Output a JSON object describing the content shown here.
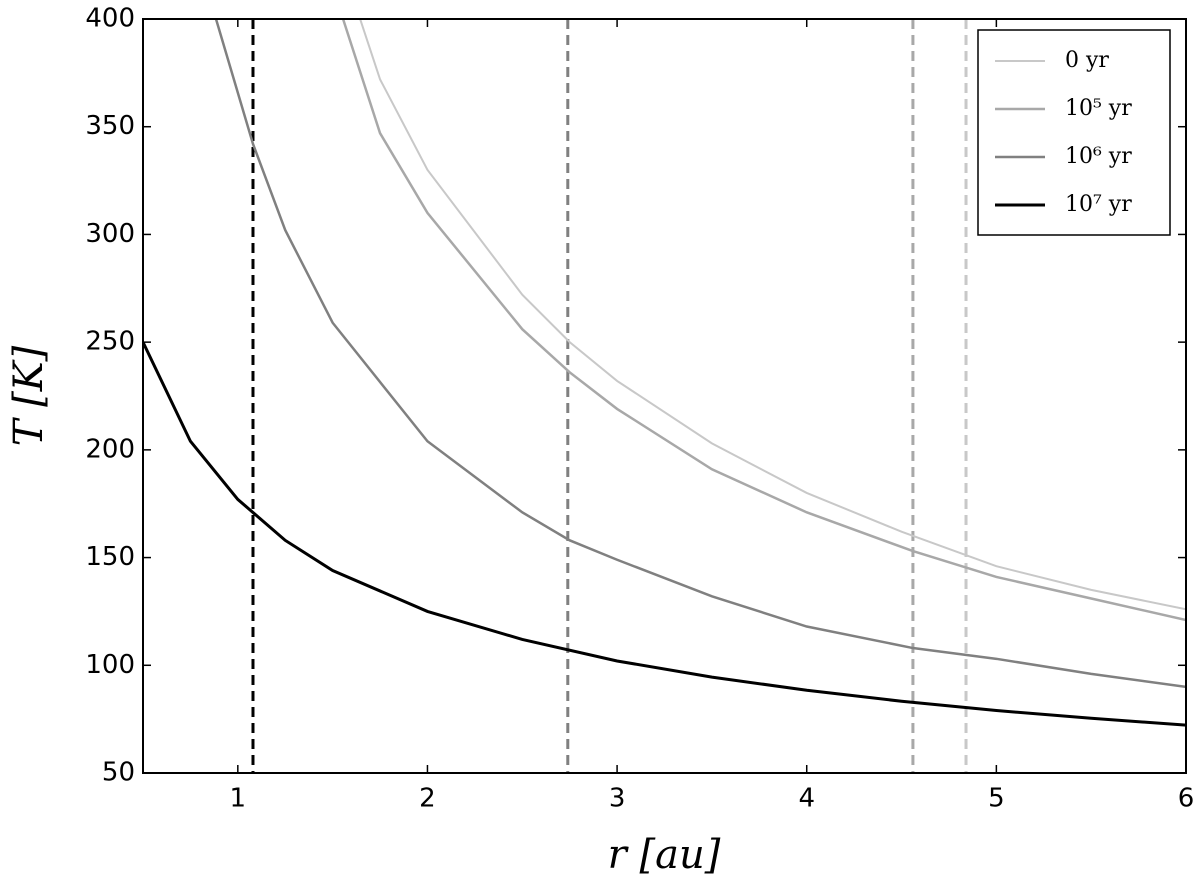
{
  "chart_data": {
    "type": "line",
    "xlabel": "r [au]",
    "ylabel": "T [K]",
    "xlim": [
      0.5,
      6
    ],
    "ylim": [
      50,
      400
    ],
    "xticks": [
      1,
      2,
      3,
      4,
      5,
      6
    ],
    "yticks": [
      50,
      100,
      150,
      200,
      250,
      300,
      350,
      400
    ],
    "legend_loc": "upper right",
    "series": [
      {
        "name": "0 yr",
        "color": "#c8c8c8",
        "width": 2,
        "x": [
          1.645,
          1.75,
          2,
          2.5,
          2.75,
          3,
          3.5,
          4,
          4.5,
          5,
          5.5,
          6
        ],
        "values": [
          400,
          372,
          330,
          272,
          250,
          232,
          203,
          180,
          162,
          146,
          135,
          126
        ]
      },
      {
        "name": "10⁵ yr",
        "color": "#a8a8a8",
        "width": 2.5,
        "x": [
          1.555,
          1.75,
          2,
          2.5,
          2.75,
          3,
          3.5,
          4,
          4.56,
          5,
          5.5,
          6
        ],
        "values": [
          400,
          347,
          310,
          256,
          236,
          219,
          191,
          171,
          153,
          141,
          131,
          121
        ]
      },
      {
        "name": "10⁶ yr",
        "color": "#808080",
        "width": 2.5,
        "x": [
          0.885,
          1.08,
          1.25,
          1.5,
          2,
          2.5,
          2.75,
          3,
          3.5,
          4,
          4.56,
          5,
          5.5,
          6
        ],
        "values": [
          400,
          342,
          302,
          259,
          204,
          171,
          158,
          149,
          132,
          118,
          108,
          103,
          96,
          90
        ]
      },
      {
        "name": "10⁷ yr",
        "color": "#000000",
        "width": 3,
        "x": [
          0.5,
          0.75,
          1,
          1.25,
          1.5,
          2,
          2.5,
          3,
          3.5,
          4,
          4.5,
          5,
          5.5,
          6
        ],
        "values": [
          250,
          204,
          177,
          158,
          144,
          125,
          112,
          102,
          94.5,
          88.4,
          83.3,
          79,
          75.4,
          72.2
        ]
      }
    ],
    "vlines": [
      {
        "x": 1.08,
        "color": "#000000"
      },
      {
        "x": 2.74,
        "color": "#808080"
      },
      {
        "x": 4.56,
        "color": "#a8a8a8"
      },
      {
        "x": 4.84,
        "color": "#c8c8c8"
      }
    ]
  }
}
